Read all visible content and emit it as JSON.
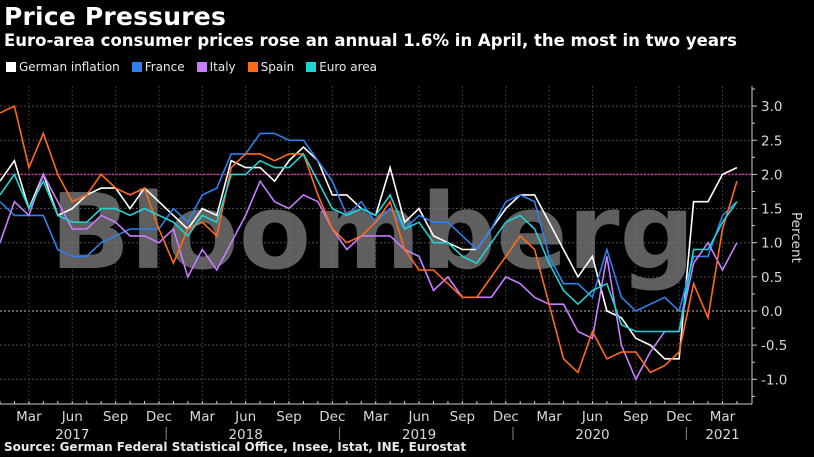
{
  "header": {
    "title": "Price Pressures",
    "subtitle": "Euro-area consumer prices rose an annual 1.6% in April, the most in two years"
  },
  "legend": [
    {
      "label": "German inflation",
      "color": "#ffffff"
    },
    {
      "label": "France",
      "color": "#2f80ed"
    },
    {
      "label": "Italy",
      "color": "#c77dff"
    },
    {
      "label": "Spain",
      "color": "#ff6a1a"
    },
    {
      "label": "Euro area",
      "color": "#1fd3d3"
    }
  ],
  "watermark": "Bloomberg",
  "footer": {
    "source": "Source: German Federal Statistical Office, Insee, Istat, INE, Eurostat"
  },
  "axis": {
    "y_label": "Percent",
    "y_ticks": [
      "3.0",
      "2.5",
      "2.0",
      "1.5",
      "1.0",
      "0.5",
      "0.0",
      "-0.5",
      "-1.0"
    ],
    "x_month_labels": [
      "Mar",
      "Jun",
      "Sep",
      "Dec",
      "Mar",
      "Jun",
      "Sep",
      "Dec",
      "Mar",
      "Jun",
      "Sep",
      "Dec",
      "Mar",
      "Jun",
      "Sep",
      "Dec",
      "Mar"
    ],
    "x_year_labels": [
      "2017",
      "2018",
      "2019",
      "2020",
      "2021"
    ]
  },
  "reference_line": {
    "value": 2.0,
    "color": "#e0309a"
  },
  "chart_data": {
    "type": "line",
    "title": "Price Pressures",
    "subtitle": "Euro-area consumer prices rose an annual 1.6% in April, the most in two years",
    "xlabel": "",
    "ylabel": "Percent",
    "ylim": [
      -1.4,
      3.3
    ],
    "grid": true,
    "legend_position": "top",
    "x": [
      "2017-01",
      "2017-02",
      "2017-03",
      "2017-04",
      "2017-05",
      "2017-06",
      "2017-07",
      "2017-08",
      "2017-09",
      "2017-10",
      "2017-11",
      "2017-12",
      "2018-01",
      "2018-02",
      "2018-03",
      "2018-04",
      "2018-05",
      "2018-06",
      "2018-07",
      "2018-08",
      "2018-09",
      "2018-10",
      "2018-11",
      "2018-12",
      "2019-01",
      "2019-02",
      "2019-03",
      "2019-04",
      "2019-05",
      "2019-06",
      "2019-07",
      "2019-08",
      "2019-09",
      "2019-10",
      "2019-11",
      "2019-12",
      "2020-01",
      "2020-02",
      "2020-03",
      "2020-04",
      "2020-05",
      "2020-06",
      "2020-07",
      "2020-08",
      "2020-09",
      "2020-10",
      "2020-11",
      "2020-12",
      "2021-01",
      "2021-02",
      "2021-03",
      "2021-04"
    ],
    "series": [
      {
        "name": "German inflation",
        "color": "#ffffff",
        "values": [
          1.9,
          2.2,
          1.5,
          2.0,
          1.4,
          1.5,
          1.7,
          1.8,
          1.8,
          1.5,
          1.8,
          1.6,
          1.4,
          1.2,
          1.5,
          1.4,
          2.2,
          2.1,
          2.1,
          1.9,
          2.2,
          2.4,
          2.2,
          1.7,
          1.7,
          1.5,
          1.4,
          2.1,
          1.3,
          1.5,
          1.1,
          1.0,
          0.9,
          0.9,
          1.2,
          1.5,
          1.7,
          1.7,
          1.3,
          0.9,
          0.5,
          0.8,
          0.0,
          -0.1,
          -0.4,
          -0.5,
          -0.7,
          -0.7,
          1.6,
          1.6,
          2.0,
          2.1
        ]
      },
      {
        "name": "France",
        "color": "#2f80ed",
        "values": [
          1.6,
          1.4,
          1.4,
          1.4,
          0.9,
          0.8,
          0.8,
          1.0,
          1.1,
          1.2,
          1.2,
          1.2,
          1.5,
          1.3,
          1.7,
          1.8,
          2.3,
          2.3,
          2.6,
          2.6,
          2.5,
          2.5,
          2.2,
          1.9,
          1.4,
          1.6,
          1.3,
          1.5,
          1.2,
          1.4,
          1.3,
          1.3,
          1.1,
          0.9,
          1.2,
          1.6,
          1.7,
          1.6,
          0.8,
          0.4,
          0.4,
          0.2,
          0.9,
          0.2,
          0.0,
          0.1,
          0.2,
          0.0,
          0.8,
          0.8,
          1.4,
          1.6
        ]
      },
      {
        "name": "Italy",
        "color": "#c77dff",
        "values": [
          1.0,
          1.6,
          1.4,
          2.0,
          1.6,
          1.2,
          1.2,
          1.4,
          1.3,
          1.1,
          1.1,
          1.0,
          1.2,
          0.5,
          0.9,
          0.6,
          1.0,
          1.4,
          1.9,
          1.6,
          1.5,
          1.7,
          1.6,
          1.2,
          0.9,
          1.1,
          1.1,
          1.1,
          0.9,
          0.8,
          0.3,
          0.5,
          0.2,
          0.2,
          0.2,
          0.5,
          0.4,
          0.2,
          0.1,
          0.1,
          -0.3,
          -0.4,
          0.8,
          -0.5,
          -1.0,
          -0.6,
          -0.3,
          -0.3,
          0.7,
          1.0,
          0.6,
          1.0
        ]
      },
      {
        "name": "Spain",
        "color": "#ff6a1a",
        "values": [
          2.9,
          3.0,
          2.1,
          2.6,
          2.0,
          1.6,
          1.7,
          2.0,
          1.8,
          1.7,
          1.8,
          1.2,
          0.7,
          1.2,
          1.3,
          1.1,
          2.1,
          2.3,
          2.3,
          2.2,
          2.3,
          2.3,
          1.7,
          1.2,
          1.0,
          1.1,
          1.3,
          1.6,
          0.9,
          0.6,
          0.6,
          0.4,
          0.2,
          0.2,
          0.5,
          0.8,
          1.1,
          0.9,
          0.1,
          -0.7,
          -0.9,
          -0.3,
          -0.7,
          -0.6,
          -0.6,
          -0.9,
          -0.8,
          -0.6,
          0.4,
          -0.1,
          1.2,
          1.9
        ]
      },
      {
        "name": "Euro area",
        "color": "#1fd3d3",
        "values": [
          1.7,
          2.0,
          1.5,
          1.9,
          1.4,
          1.3,
          1.3,
          1.5,
          1.5,
          1.4,
          1.5,
          1.4,
          1.3,
          1.1,
          1.4,
          1.3,
          2.0,
          2.0,
          2.2,
          2.1,
          2.1,
          2.3,
          1.9,
          1.5,
          1.4,
          1.5,
          1.4,
          1.7,
          1.2,
          1.3,
          1.0,
          1.0,
          0.8,
          0.7,
          1.0,
          1.3,
          1.4,
          1.2,
          0.7,
          0.3,
          0.1,
          0.3,
          0.4,
          -0.2,
          -0.3,
          -0.3,
          -0.3,
          -0.3,
          0.9,
          0.9,
          1.3,
          1.6
        ]
      }
    ]
  }
}
